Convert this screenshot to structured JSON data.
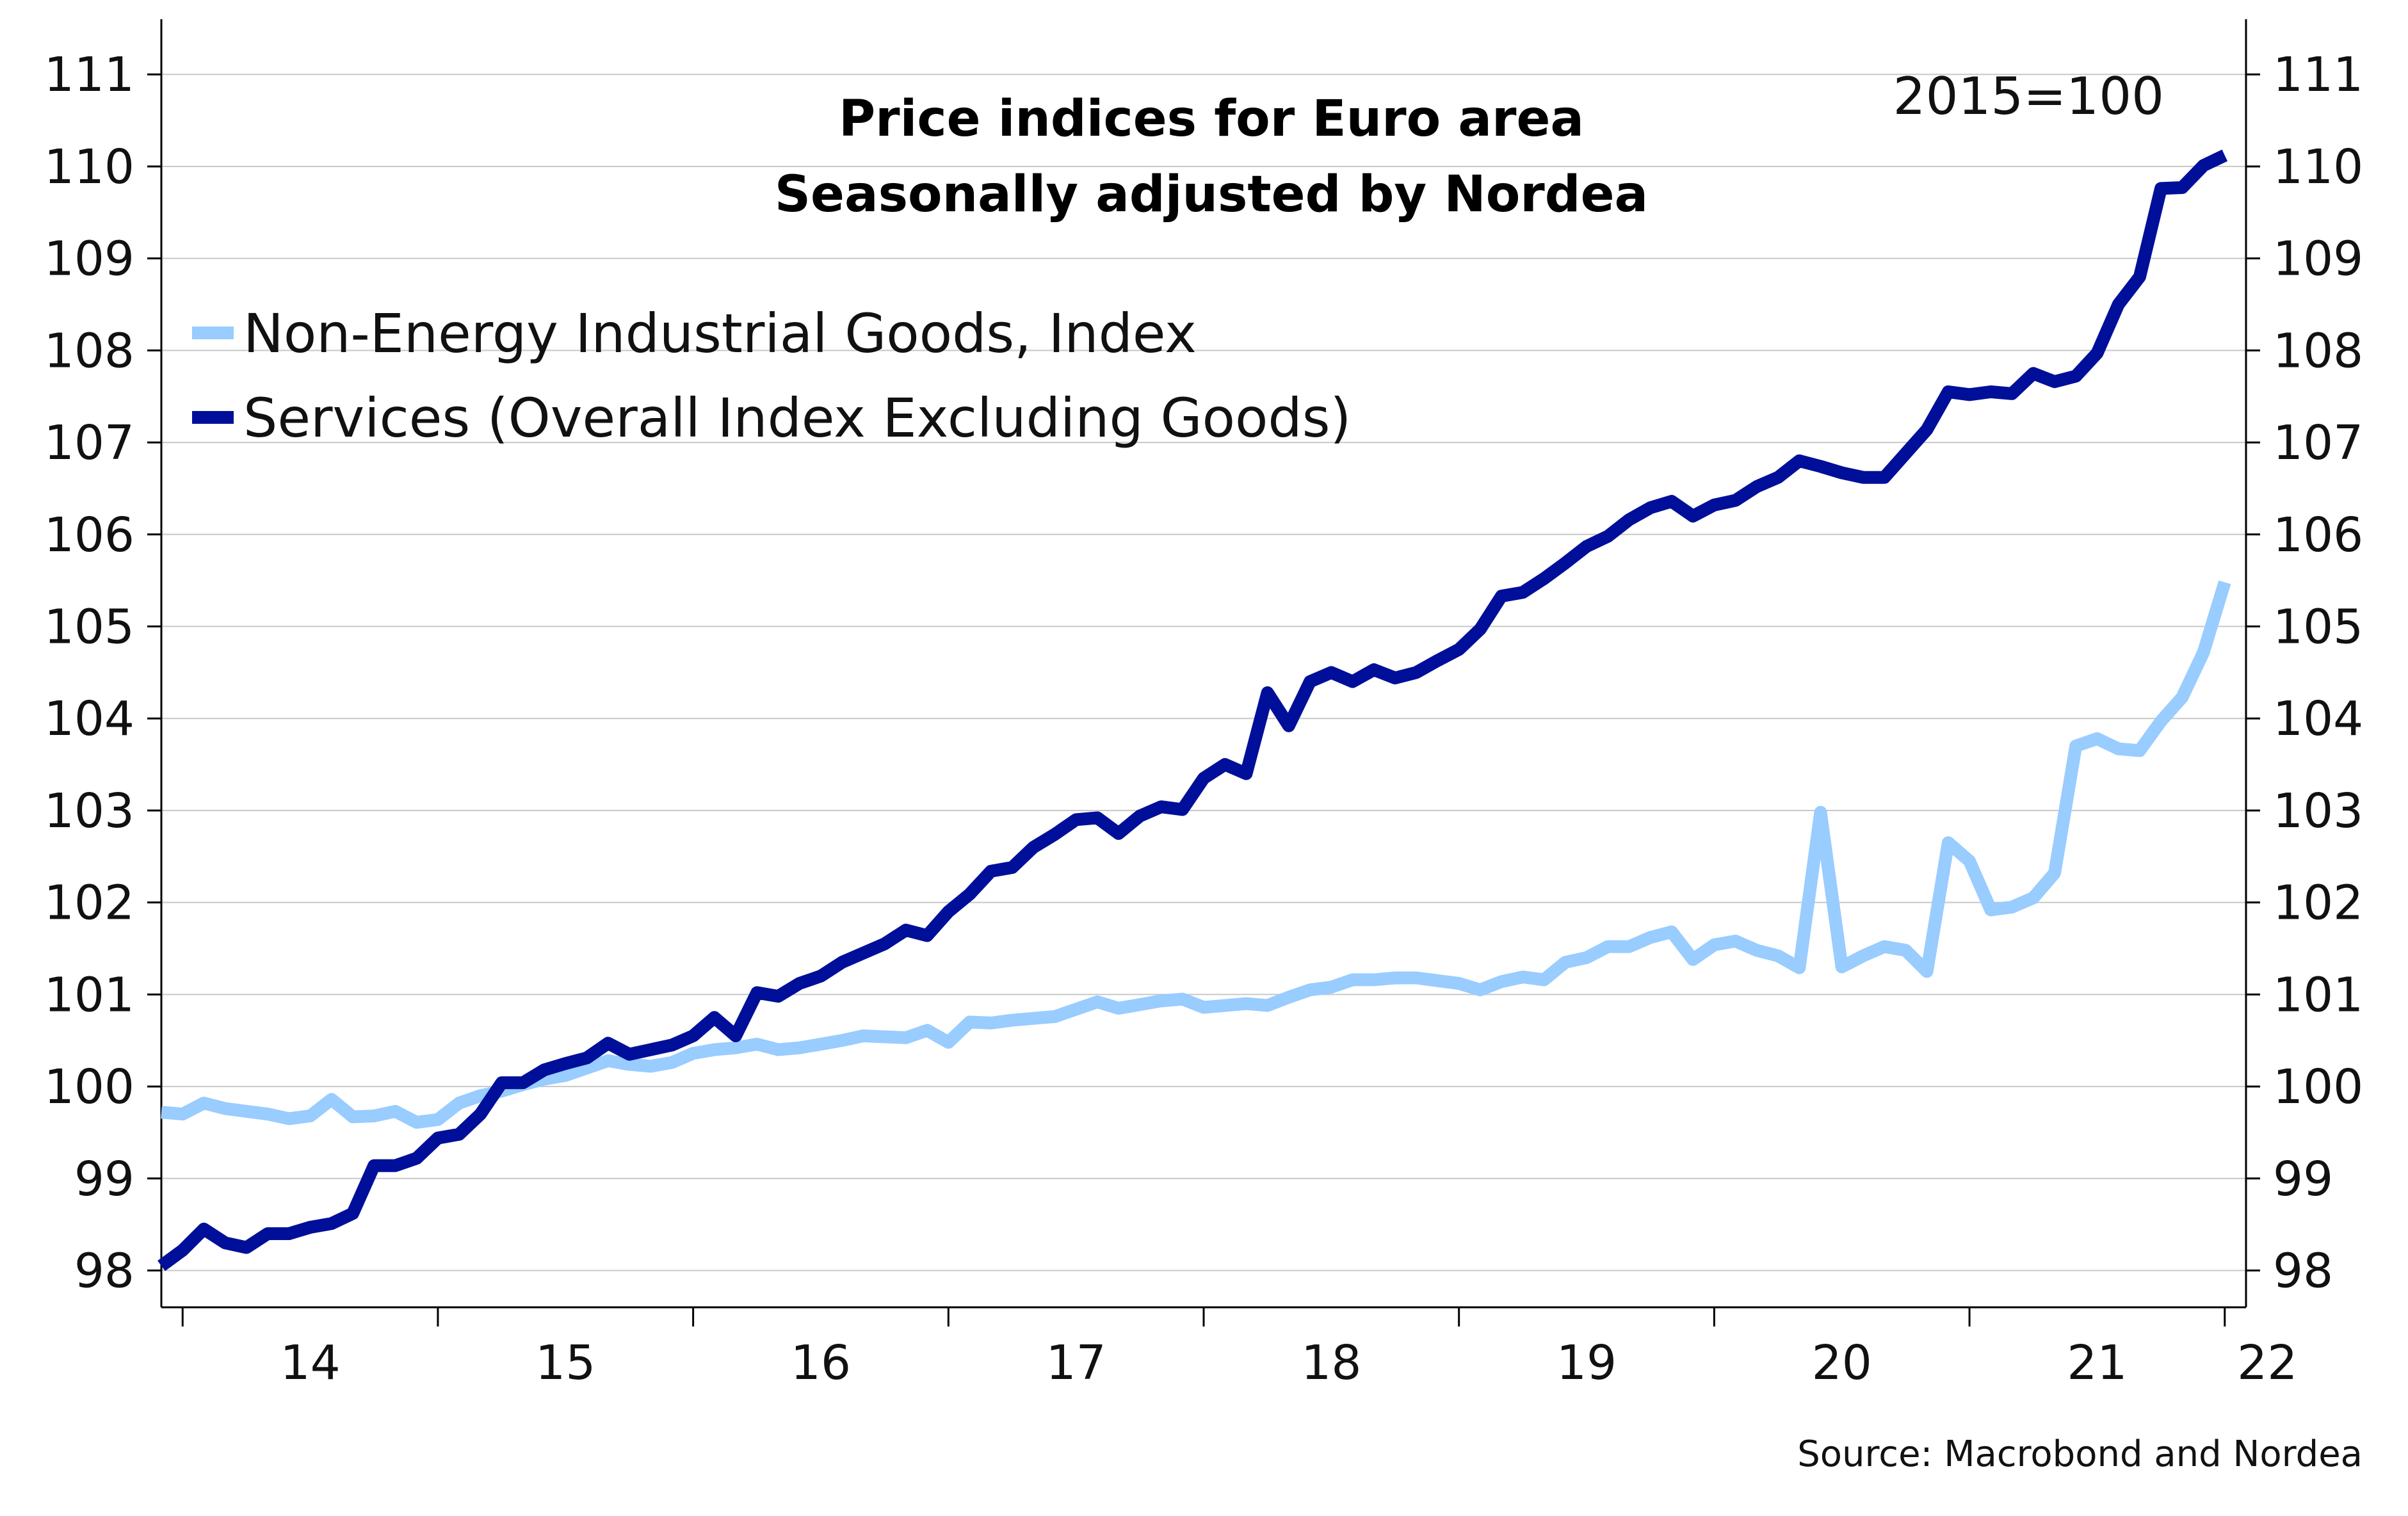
{
  "chart_data": {
    "type": "line",
    "title": "Price indices for Euro area",
    "subtitle": "Seasonally adjusted by Nordea",
    "annotation": "2015=100",
    "source": "Source: Macrobond and Nordea",
    "xlabel": "",
    "ylabel": "",
    "y_ticks": [
      "98",
      "99",
      "100",
      "101",
      "102",
      "103",
      "104",
      "105",
      "106",
      "107",
      "108",
      "109",
      "110",
      "111"
    ],
    "ylim": [
      97.6,
      111.6
    ],
    "x_ticks": [
      "14",
      "15",
      "16",
      "17",
      "18",
      "19",
      "20",
      "21",
      "22"
    ],
    "x_range": [
      "2013-12",
      "2022-02"
    ],
    "grid": true,
    "legend_position": "top-left",
    "dual_axis_mirrored": true,
    "series": [
      {
        "name": "Non-Energy Industrial Goods, Index",
        "color": "#99CCFF",
        "values": [
          99.72,
          99.7,
          99.82,
          99.76,
          99.73,
          99.7,
          99.65,
          99.68,
          99.86,
          99.67,
          99.68,
          99.73,
          99.61,
          99.64,
          99.82,
          99.9,
          99.95,
          100.02,
          100.08,
          100.12,
          100.2,
          100.28,
          100.24,
          100.22,
          100.26,
          100.36,
          100.4,
          100.42,
          100.46,
          100.4,
          100.42,
          100.46,
          100.5,
          100.55,
          100.54,
          100.53,
          100.61,
          100.48,
          100.7,
          100.69,
          100.72,
          100.74,
          100.76,
          100.84,
          100.92,
          100.85,
          100.89,
          100.93,
          100.95,
          100.86,
          100.88,
          100.9,
          100.88,
          100.97,
          101.05,
          101.08,
          101.16,
          101.16,
          101.18,
          101.18,
          101.15,
          101.12,
          101.05,
          101.14,
          101.19,
          101.16,
          101.35,
          101.4,
          101.52,
          101.52,
          101.62,
          101.68,
          101.38,
          101.54,
          101.58,
          101.48,
          101.42,
          101.29,
          102.98,
          101.3,
          101.42,
          101.52,
          101.48,
          101.25,
          102.65,
          102.45,
          101.92,
          101.95,
          102.05,
          102.32,
          103.7,
          103.78,
          103.67,
          103.65,
          103.97,
          104.23,
          104.72,
          105.48
        ]
      },
      {
        "name": "Services (Overall Index Excluding Goods)",
        "color": "#000F99",
        "values": [
          98.05,
          98.22,
          98.45,
          98.3,
          98.25,
          98.4,
          98.4,
          98.47,
          98.51,
          98.62,
          99.14,
          99.14,
          99.22,
          99.44,
          99.48,
          99.7,
          100.04,
          100.04,
          100.18,
          100.25,
          100.31,
          100.47,
          100.35,
          100.4,
          100.45,
          100.55,
          100.75,
          100.55,
          101.02,
          100.98,
          101.12,
          101.2,
          101.35,
          101.45,
          101.55,
          101.7,
          101.64,
          101.9,
          102.09,
          102.34,
          102.38,
          102.6,
          102.74,
          102.9,
          102.92,
          102.75,
          102.94,
          103.04,
          103.01,
          103.35,
          103.5,
          103.4,
          104.28,
          103.92,
          104.4,
          104.5,
          104.4,
          104.53,
          104.44,
          104.5,
          104.63,
          104.75,
          104.97,
          105.33,
          105.37,
          105.52,
          105.69,
          105.87,
          105.98,
          106.16,
          106.29,
          106.36,
          106.2,
          106.32,
          106.37,
          106.52,
          106.62,
          106.8,
          106.74,
          106.67,
          106.62,
          106.62,
          106.88,
          107.14,
          107.55,
          107.52,
          107.55,
          107.53,
          107.75,
          107.66,
          107.72,
          107.97,
          108.5,
          108.8,
          109.76,
          109.77,
          110.01,
          110.12
        ]
      }
    ]
  }
}
